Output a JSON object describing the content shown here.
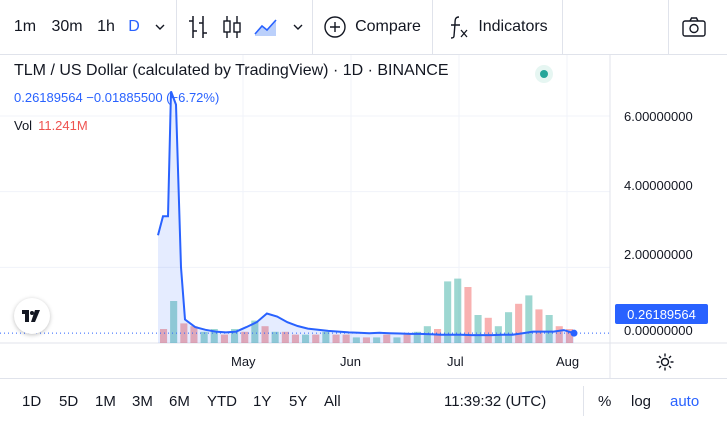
{
  "toolbar": {
    "intervals": [
      "1m",
      "30m",
      "1h",
      "D"
    ],
    "active_interval": "D",
    "compare_label": "Compare",
    "indicators_label": "Indicators"
  },
  "legend": {
    "title": "TLM / US Dollar (calculated by TradingView) · 1D · BINANCE",
    "price_line": "0.26189564 −0.01885500 (−6.72%)",
    "vol_label": "Vol",
    "vol_value": "11.241M"
  },
  "axes": {
    "y_ticks": [
      "6.00000000",
      "4.00000000",
      "2.00000000",
      "0.00000000"
    ],
    "x_ticks": [
      "May",
      "Jun",
      "Jul",
      "Aug"
    ],
    "last_price": "0.26189564"
  },
  "bottom": {
    "ranges": [
      "1D",
      "5D",
      "1M",
      "3M",
      "6M",
      "YTD",
      "1Y",
      "5Y",
      "All"
    ],
    "time": "11:39:32 (UTC)",
    "percent": "%",
    "log": "log",
    "auto": "auto"
  },
  "colors": {
    "accent": "#2962ff",
    "line": "#2962ff",
    "vol_up": "#26a69a",
    "vol_down": "#ef5350"
  },
  "chart_data": {
    "type": "area",
    "title": "TLM / US Dollar (calculated by TradingView) · 1D · BINANCE",
    "xlabel": "",
    "ylabel": "",
    "ylim": [
      0,
      6.7
    ],
    "x_ticks": [
      "May",
      "Jun",
      "Jul",
      "Aug"
    ],
    "series": [
      {
        "values": [
          2.85,
          3.35,
          3.35,
          6.65,
          6.3,
          2.0,
          0.62,
          0.42,
          0.35,
          0.3,
          0.28,
          0.3,
          0.42,
          0.55,
          0.78,
          0.7,
          0.55,
          0.45,
          0.38,
          0.35,
          0.32,
          0.3,
          0.28,
          0.27,
          0.26,
          0.27,
          0.26,
          0.25,
          0.24,
          0.24,
          0.23,
          0.22,
          0.22,
          0.22,
          0.21,
          0.21,
          0.21,
          0.22,
          0.22,
          0.26,
          0.3,
          0.3,
          0.3,
          0.34,
          0.26
        ]
      }
    ],
    "volume": {
      "values": [
        0.5,
        1.5,
        0.7,
        0.6,
        0.4,
        0.5,
        0.3,
        0.5,
        0.4,
        0.8,
        0.6,
        0.4,
        0.4,
        0.3,
        0.3,
        0.3,
        0.4,
        0.3,
        0.3,
        0.2,
        0.2,
        0.2,
        0.3,
        0.2,
        0.3,
        0.4,
        0.6,
        0.5,
        2.2,
        2.3,
        2.0,
        1.0,
        0.9,
        0.6,
        1.1,
        1.4,
        1.7,
        1.2,
        1.0,
        0.6,
        0.5
      ],
      "up": [
        false,
        true,
        false,
        false,
        true,
        true,
        false,
        true,
        false,
        true,
        false,
        true,
        false,
        false,
        true,
        false,
        true,
        false,
        false,
        true,
        false,
        true,
        false,
        true,
        false,
        true,
        true,
        false,
        true,
        true,
        false,
        true,
        false,
        true,
        true,
        false,
        true,
        false,
        true,
        false,
        false
      ]
    }
  }
}
